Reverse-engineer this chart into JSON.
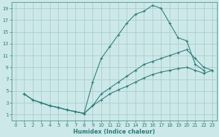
{
  "xlabel": "Humidex (Indice chaleur)",
  "bg_color": "#cce8e8",
  "grid_color": "#aacccc",
  "line_color": "#2d7a7a",
  "xlim": [
    -0.5,
    23.5
  ],
  "ylim": [
    0,
    20
  ],
  "xticks": [
    0,
    1,
    2,
    3,
    4,
    5,
    6,
    7,
    8,
    9,
    10,
    11,
    12,
    13,
    14,
    15,
    16,
    17,
    18,
    19,
    20,
    21,
    22,
    23
  ],
  "yticks": [
    1,
    3,
    5,
    7,
    9,
    11,
    13,
    15,
    17,
    19
  ],
  "curve1_x": [
    1,
    2,
    3,
    4,
    5,
    6,
    7,
    8,
    9,
    10,
    11,
    12,
    13,
    14,
    15,
    16,
    17,
    18,
    19,
    20,
    21,
    22
  ],
  "curve1_y": [
    4.5,
    3.5,
    3.0,
    2.5,
    2.2,
    1.8,
    1.5,
    1.2,
    6.5,
    10.5,
    12.5,
    14.5,
    16.5,
    18.0,
    18.5,
    19.5,
    19.0,
    16.5,
    14.0,
    13.5,
    9.5,
    8.5
  ],
  "curve2_x": [
    1,
    2,
    3,
    4,
    5,
    6,
    7,
    8,
    9,
    10,
    11,
    12,
    13,
    14,
    15,
    16,
    17,
    18,
    19,
    20,
    21,
    22,
    23
  ],
  "curve2_y": [
    4.5,
    3.5,
    3.0,
    2.5,
    2.2,
    1.8,
    1.5,
    1.2,
    2.5,
    4.5,
    5.5,
    6.5,
    7.5,
    8.5,
    9.5,
    10.0,
    10.5,
    11.0,
    11.5,
    12.0,
    10.5,
    9.0,
    8.5
  ],
  "curve3_x": [
    1,
    2,
    3,
    4,
    5,
    6,
    7,
    8,
    9,
    10,
    11,
    12,
    13,
    14,
    15,
    16,
    17,
    18,
    19,
    20,
    21,
    22,
    23
  ],
  "curve3_y": [
    4.5,
    3.5,
    3.0,
    2.5,
    2.2,
    1.8,
    1.5,
    1.2,
    2.5,
    3.5,
    4.5,
    5.2,
    5.8,
    6.5,
    7.2,
    7.8,
    8.2,
    8.5,
    8.8,
    9.0,
    8.5,
    8.0,
    8.5
  ]
}
